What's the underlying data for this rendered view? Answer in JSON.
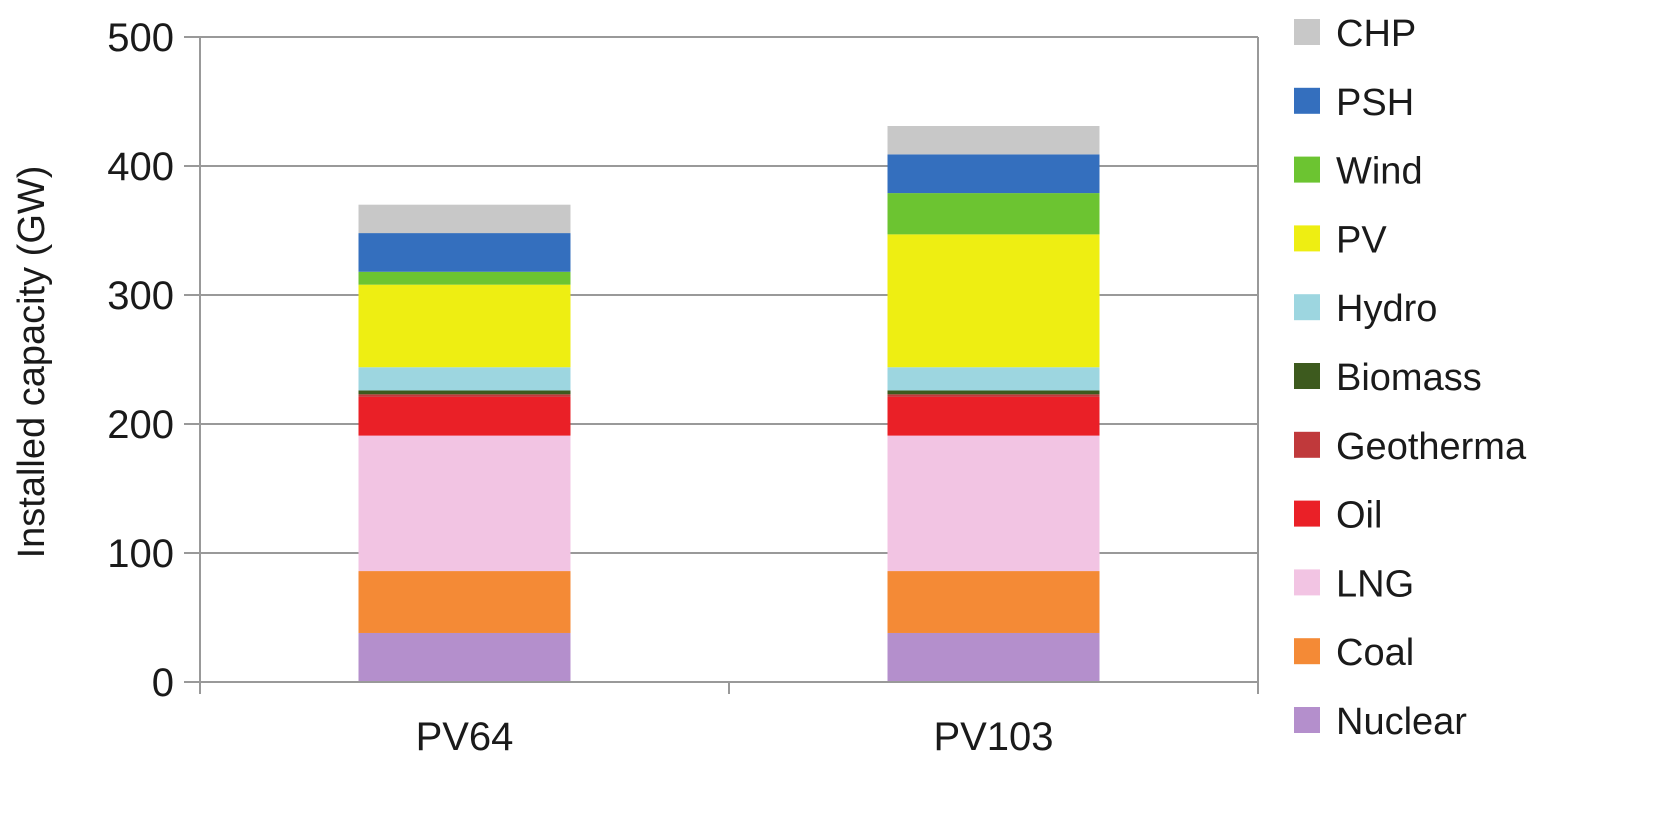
{
  "chart_data": {
    "type": "bar",
    "stacked": true,
    "categories": [
      "PV64",
      "PV103"
    ],
    "ylabel": "Installed capacity (GW)",
    "xlabel": "",
    "ylim": [
      0,
      500
    ],
    "yticks": [
      0,
      100,
      200,
      300,
      400,
      500
    ],
    "grid": true,
    "legend_position": "right",
    "series": [
      {
        "name": "Nuclear",
        "color": "#b48fcc",
        "values": [
          38,
          38
        ]
      },
      {
        "name": "Coal",
        "color": "#f48a36",
        "values": [
          48,
          48
        ]
      },
      {
        "name": "LNG",
        "color": "#f2c4e3",
        "values": [
          105,
          105
        ]
      },
      {
        "name": "Oil",
        "color": "#ea2027",
        "values": [
          30,
          30
        ]
      },
      {
        "name": "Geotherma",
        "color": "#c0393b",
        "values": [
          2,
          2
        ]
      },
      {
        "name": "Biomass",
        "color": "#3d5a1e",
        "values": [
          3,
          3
        ]
      },
      {
        "name": "Hydro",
        "color": "#9dd6e0",
        "values": [
          18,
          18
        ]
      },
      {
        "name": "PV",
        "color": "#eeee12",
        "values": [
          64,
          103
        ]
      },
      {
        "name": "Wind",
        "color": "#6cc431",
        "values": [
          10,
          32
        ]
      },
      {
        "name": "PSH",
        "color": "#346fbe",
        "values": [
          30,
          30
        ]
      },
      {
        "name": "CHP",
        "color": "#c8c8c8",
        "values": [
          22,
          22
        ]
      }
    ]
  }
}
